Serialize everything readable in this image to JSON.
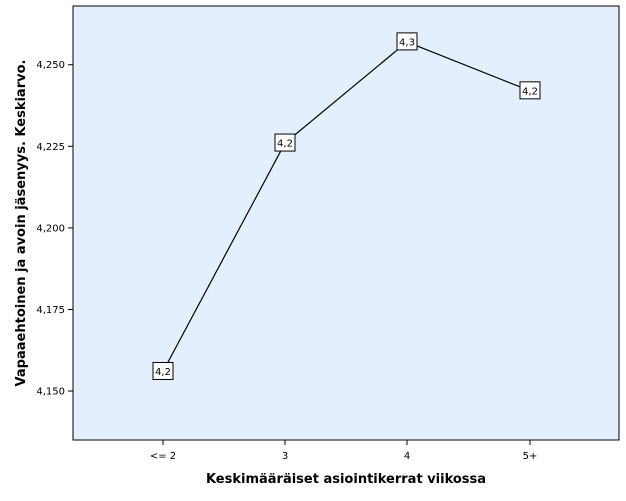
{
  "chart_data": {
    "type": "line",
    "title": "",
    "xlabel": "Keskimääräiset asiointikerrat viikossa",
    "ylabel": "Vapaaehtoinen ja avoin jäsenyys. Keskiarvo.",
    "categories": [
      "<= 2",
      "3",
      "4",
      "5+"
    ],
    "values": [
      4.156,
      4.226,
      4.257,
      4.242
    ],
    "data_labels": [
      "4,2",
      "4,2",
      "4,3",
      "4,2"
    ],
    "ylim": [
      4.135,
      4.268
    ],
    "yticks": [
      4.15,
      4.175,
      4.2,
      4.225,
      4.25
    ],
    "ytick_labels": [
      "4,150",
      "4,175",
      "4,200",
      "4,225",
      "4,250"
    ],
    "grid": false,
    "legend": "none",
    "colors": {
      "plot_background": "#E3EFFC",
      "line": "#000000",
      "label_box": "#FFFFFF"
    }
  }
}
